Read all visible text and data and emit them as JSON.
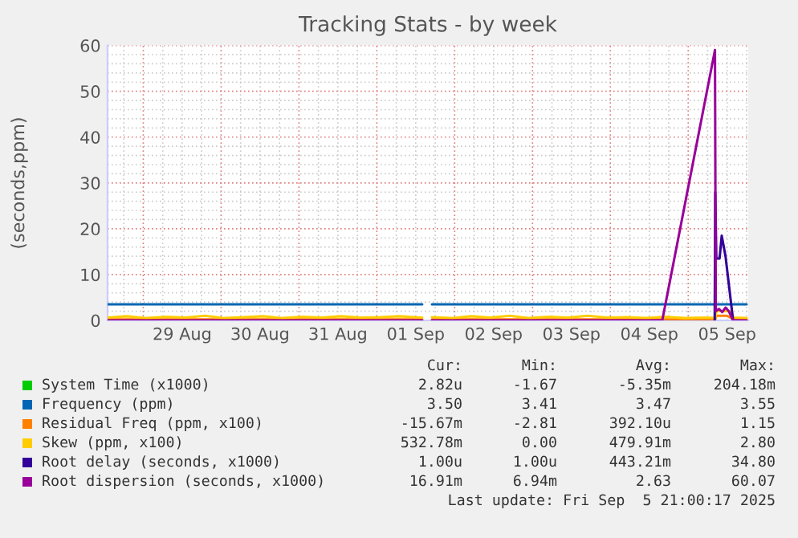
{
  "chart_data": {
    "type": "line",
    "title": "Tracking Stats - by week",
    "ylabel": "(seconds,ppm)",
    "xlim": [
      "2025-08-28T13:00",
      "2025-09-05T18:30"
    ],
    "ylim": [
      0,
      60
    ],
    "yticks": [
      0,
      10,
      20,
      30,
      40,
      50,
      60
    ],
    "xticks": [
      {
        "value": "2025-08-29T12:00",
        "label": "29 Aug"
      },
      {
        "value": "2025-08-30T12:00",
        "label": "30 Aug"
      },
      {
        "value": "2025-08-31T12:00",
        "label": "31 Aug"
      },
      {
        "value": "2025-09-01T12:00",
        "label": "01 Sep"
      },
      {
        "value": "2025-09-02T12:00",
        "label": "02 Sep"
      },
      {
        "value": "2025-09-03T12:00",
        "label": "03 Sep"
      },
      {
        "value": "2025-09-04T12:00",
        "label": "04 Sep"
      },
      {
        "value": "2025-09-05T12:00",
        "label": "05 Sep"
      }
    ],
    "grid": true,
    "legend": "bottom",
    "marker": "none",
    "line_style": "solid",
    "series": [
      {
        "name": "System Time (x1000)",
        "color": "#00cc00"
      },
      {
        "name": "Frequency (ppm)",
        "color": "#0066b3",
        "x": [
          "2025-08-28T13:00",
          "2025-09-01T14:00",
          "2025-09-01T15:30",
          "2025-09-01T17:00",
          "2025-09-05T18:00"
        ],
        "values": [
          3.5,
          3.5,
          null,
          3.5,
          3.5
        ]
      },
      {
        "name": "Residual Freq (ppm, x100)",
        "color": "#ff8000",
        "x": [
          "2025-08-28T13:00",
          "2025-09-01T14:00",
          "2025-09-01T15:30",
          "2025-09-01T17:00",
          "2025-09-05T08:20",
          "2025-09-05T08:40",
          "2025-09-05T12:00",
          "2025-09-05T14:00",
          "2025-09-05T18:00"
        ],
        "values": [
          0.2,
          0.2,
          null,
          0.2,
          0.2,
          1.0,
          1.0,
          0.3,
          0.2
        ]
      },
      {
        "name": "Skew (ppm, x100)",
        "color": "#ffcc00",
        "x": [
          "2025-08-28T13:00",
          "2025-08-28T19:00",
          "2025-08-29T01:00",
          "2025-08-29T07:00",
          "2025-08-29T13:00",
          "2025-08-29T19:00",
          "2025-08-30T01:00",
          "2025-08-30T07:00",
          "2025-08-30T13:00",
          "2025-08-30T19:00",
          "2025-08-31T01:00",
          "2025-08-31T07:00",
          "2025-08-31T13:00",
          "2025-08-31T19:00",
          "2025-09-01T01:00",
          "2025-09-01T07:00",
          "2025-09-01T14:00",
          "2025-09-01T15:30",
          "2025-09-01T17:00",
          "2025-09-01T23:00",
          "2025-09-02T05:00",
          "2025-09-02T11:00",
          "2025-09-02T17:00",
          "2025-09-02T23:00",
          "2025-09-03T05:00",
          "2025-09-03T11:00",
          "2025-09-03T17:00",
          "2025-09-03T23:00",
          "2025-09-04T05:00",
          "2025-09-04T11:00",
          "2025-09-04T17:00",
          "2025-09-04T23:00",
          "2025-09-05T05:00",
          "2025-09-05T08:20",
          "2025-09-05T08:40",
          "2025-09-05T13:00",
          "2025-09-05T14:00",
          "2025-09-05T18:00"
        ],
        "values": [
          0.6,
          0.9,
          0.5,
          0.8,
          0.6,
          1.0,
          0.5,
          0.7,
          0.9,
          0.5,
          0.8,
          0.6,
          0.9,
          0.6,
          0.7,
          0.9,
          0.6,
          null,
          0.7,
          0.5,
          0.9,
          0.6,
          1.0,
          0.5,
          0.8,
          0.6,
          1.0,
          0.6,
          0.7,
          0.5,
          0.8,
          0.5,
          0.6,
          0.5,
          2.0,
          2.0,
          0.6,
          0.5
        ]
      },
      {
        "name": "Root delay (seconds, x1000)",
        "color": "#330099",
        "x": [
          "2025-09-05T08:10",
          "2025-09-05T08:20",
          "2025-09-05T08:40",
          "2025-09-05T09:40",
          "2025-09-05T10:20",
          "2025-09-05T11:30",
          "2025-09-05T13:50"
        ],
        "values": [
          0,
          28,
          13.5,
          13.5,
          18.5,
          14,
          0
        ]
      },
      {
        "name": "Root dispersion (seconds, x1000)",
        "color": "#990099",
        "x": [
          "2025-08-28T13:00",
          "2025-09-01T14:00",
          "2025-09-01T15:30",
          "2025-09-01T17:00",
          "2025-09-04T16:00",
          "2025-09-05T08:15",
          "2025-09-05T08:30",
          "2025-09-05T09:30",
          "2025-09-05T10:30",
          "2025-09-05T11:30",
          "2025-09-05T12:30",
          "2025-09-05T13:50",
          "2025-09-05T18:00"
        ],
        "values": [
          0,
          0,
          null,
          0,
          0,
          59,
          2,
          2.5,
          1.8,
          2.8,
          2.0,
          0,
          0
        ]
      }
    ],
    "annotations": [
      "Cur:",
      "Min:",
      "Avg:",
      "Max:",
      "2.82u",
      "-1.67",
      "-5.35m",
      "204.18m",
      "3.50",
      "3.41",
      "3.47",
      "3.55",
      "-15.67m",
      "-2.81",
      "392.10u",
      "1.15",
      "532.78m",
      "0.00",
      "479.91m",
      "2.80",
      "1.00u",
      "1.00u",
      "443.21m",
      "34.80",
      "16.91m",
      "6.94m",
      "2.63",
      "60.07",
      "Last update: Fri Sep  5 21:00:17 2025"
    ]
  }
}
